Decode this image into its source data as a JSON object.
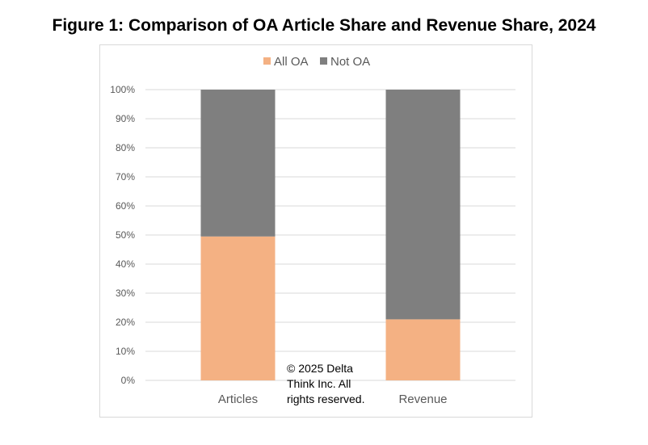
{
  "figure": {
    "title": "Figure 1: Comparison of OA Article Share and Revenue Share, 2024",
    "copyright": "© 2025 Delta\nThink Inc. All\nrights reserved."
  },
  "colors": {
    "all_oa": "#f4b183",
    "not_oa": "#7f7f7f",
    "grid": "#d9d9d9",
    "text": "#595959"
  },
  "chart_data": {
    "type": "bar",
    "stacked": true,
    "title": "Figure 1: Comparison of OA Article Share and Revenue Share, 2024",
    "categories": [
      "Articles",
      "Revenue"
    ],
    "series": [
      {
        "name": "All OA",
        "values": [
          49.5,
          21
        ]
      },
      {
        "name": "Not OA",
        "values": [
          50.5,
          79
        ]
      }
    ],
    "ylim": [
      0,
      100
    ],
    "yticks": [
      "0%",
      "10%",
      "20%",
      "30%",
      "40%",
      "50%",
      "60%",
      "70%",
      "80%",
      "90%",
      "100%"
    ],
    "ytick_values": [
      0,
      10,
      20,
      30,
      40,
      50,
      60,
      70,
      80,
      90,
      100
    ],
    "xlabel": "",
    "ylabel": "",
    "grid": true,
    "legend_position": "top"
  }
}
